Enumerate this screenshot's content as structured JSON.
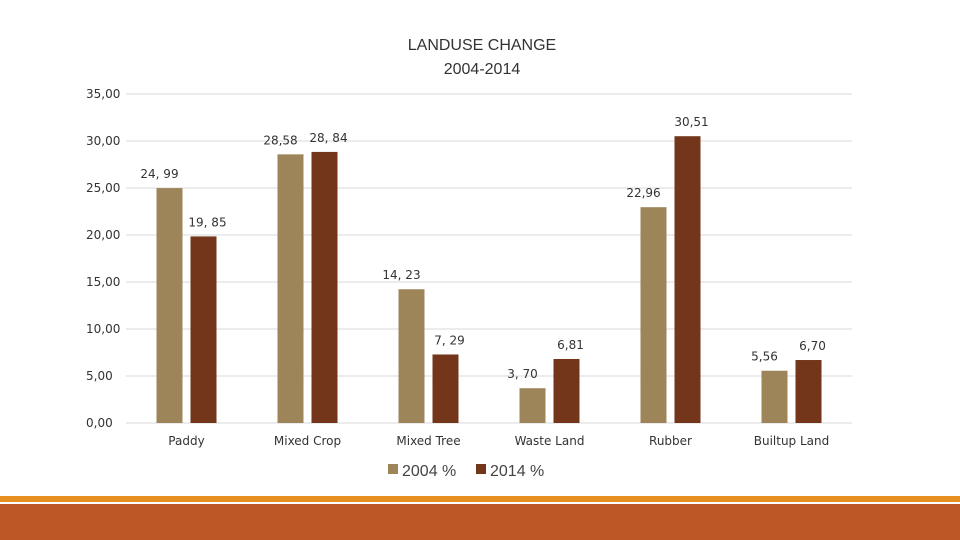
{
  "colors": {
    "series_2004": "#9e8559",
    "series_2014": "#73361a",
    "footer_accent": "#e58f1f",
    "footer_band": "#bd5826",
    "gridline": "#d9d9d9"
  },
  "chart_data": {
    "type": "bar",
    "title": "LANDUSE CHANGE",
    "subtitle": "2004-2014",
    "xlabel": "",
    "ylabel": "",
    "ylim": [
      0,
      35
    ],
    "yticks": [
      "0,00",
      "5,00",
      "10,00",
      "15,00",
      "20,00",
      "25,00",
      "30,00",
      "35,00"
    ],
    "grid": true,
    "legend_position": "bottom",
    "categories": [
      "Paddy",
      "Mixed Crop",
      "Mixed Tree",
      "Waste Land",
      "Rubber",
      "Builtup Land"
    ],
    "series": [
      {
        "name": "2004 %",
        "values": [
          24.99,
          28.58,
          14.23,
          3.7,
          22.96,
          5.56
        ],
        "labels": [
          "24, 99",
          "28,58",
          "14, 23",
          "3, 70",
          "22,96",
          "5,56"
        ]
      },
      {
        "name": "2014 %",
        "values": [
          19.85,
          28.84,
          7.29,
          6.81,
          30.51,
          6.7
        ],
        "labels": [
          "19, 85",
          "28, 84",
          "7, 29",
          "6,81",
          "30,51",
          "6,70"
        ]
      }
    ]
  }
}
